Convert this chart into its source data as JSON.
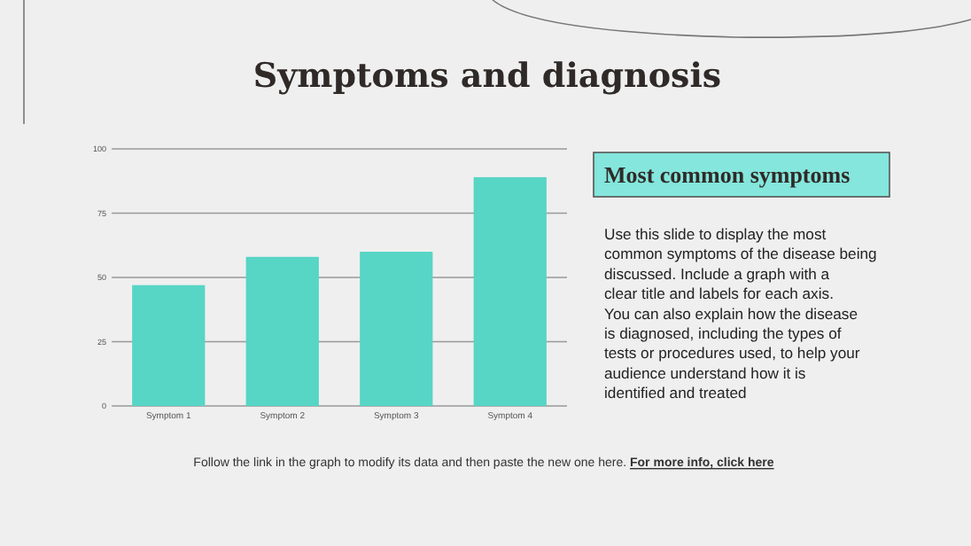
{
  "chart_data": {
    "type": "bar",
    "title": "Symptoms and diagnosis",
    "categories": [
      "Symptom 1",
      "Symptom 2",
      "Symptom 3",
      "Symptom 4"
    ],
    "values": [
      47,
      58,
      60,
      89
    ],
    "color": "#57d5c5",
    "ylim": [
      0,
      100
    ],
    "yticks": [
      0,
      25,
      50,
      75,
      100
    ],
    "grid": "y",
    "annotations": [
      "Most common symptoms",
      "Use this slide to display the most common symptoms of the disease being discussed. Include a graph with a clear title and labels for each axis. You can also explain how the disease is diagnosed, including the types of tests or procedures used, to help your audience understand how it is identified and treated",
      "Follow the link in the graph to modify its data and then paste the new one here.",
      "For more info, click here"
    ]
  }
}
